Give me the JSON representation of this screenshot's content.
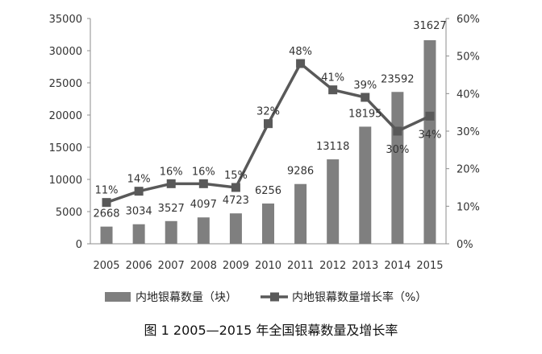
{
  "chart_data": {
    "type": "bar",
    "categories": [
      "2005",
      "2006",
      "2007",
      "2008",
      "2009",
      "2010",
      "2011",
      "2012",
      "2013",
      "2014",
      "2015"
    ],
    "series": [
      {
        "name": "内地银幕数量（块）",
        "type": "bar",
        "axis": "left",
        "values": [
          2668,
          3034,
          3527,
          4097,
          4723,
          6256,
          9286,
          13118,
          18195,
          23592,
          31627
        ],
        "labels": [
          "2668",
          "3034",
          "3527",
          "4097",
          "4723",
          "6256",
          "9286",
          "13118",
          "18195",
          "23592",
          "31627"
        ]
      },
      {
        "name": "内地银幕数量增长率（%）",
        "type": "line",
        "axis": "right",
        "values": [
          11,
          14,
          16,
          16,
          15,
          32,
          48,
          41,
          39,
          30,
          34
        ],
        "labels": [
          "11%",
          "14%",
          "16%",
          "16%",
          "15%",
          "32%",
          "48%",
          "41%",
          "39%",
          "30%",
          "34%"
        ]
      }
    ],
    "y_left": {
      "ylim": [
        0,
        35000
      ],
      "ticks": [
        "0",
        "5000",
        "10000",
        "15000",
        "20000",
        "25000",
        "30000",
        "35000"
      ]
    },
    "y_right": {
      "ylim": [
        0,
        60
      ],
      "ticks": [
        "0%",
        "10%",
        "20%",
        "30%",
        "40%",
        "50%",
        "60%"
      ]
    },
    "grid": false,
    "legend_position": "bottom",
    "caption": "图 1 2005—2015 年全国银幕数量及增长率",
    "colors": {
      "bar": "#7f7f7f",
      "line": "#595959",
      "axis": "#8c8c8c"
    }
  }
}
